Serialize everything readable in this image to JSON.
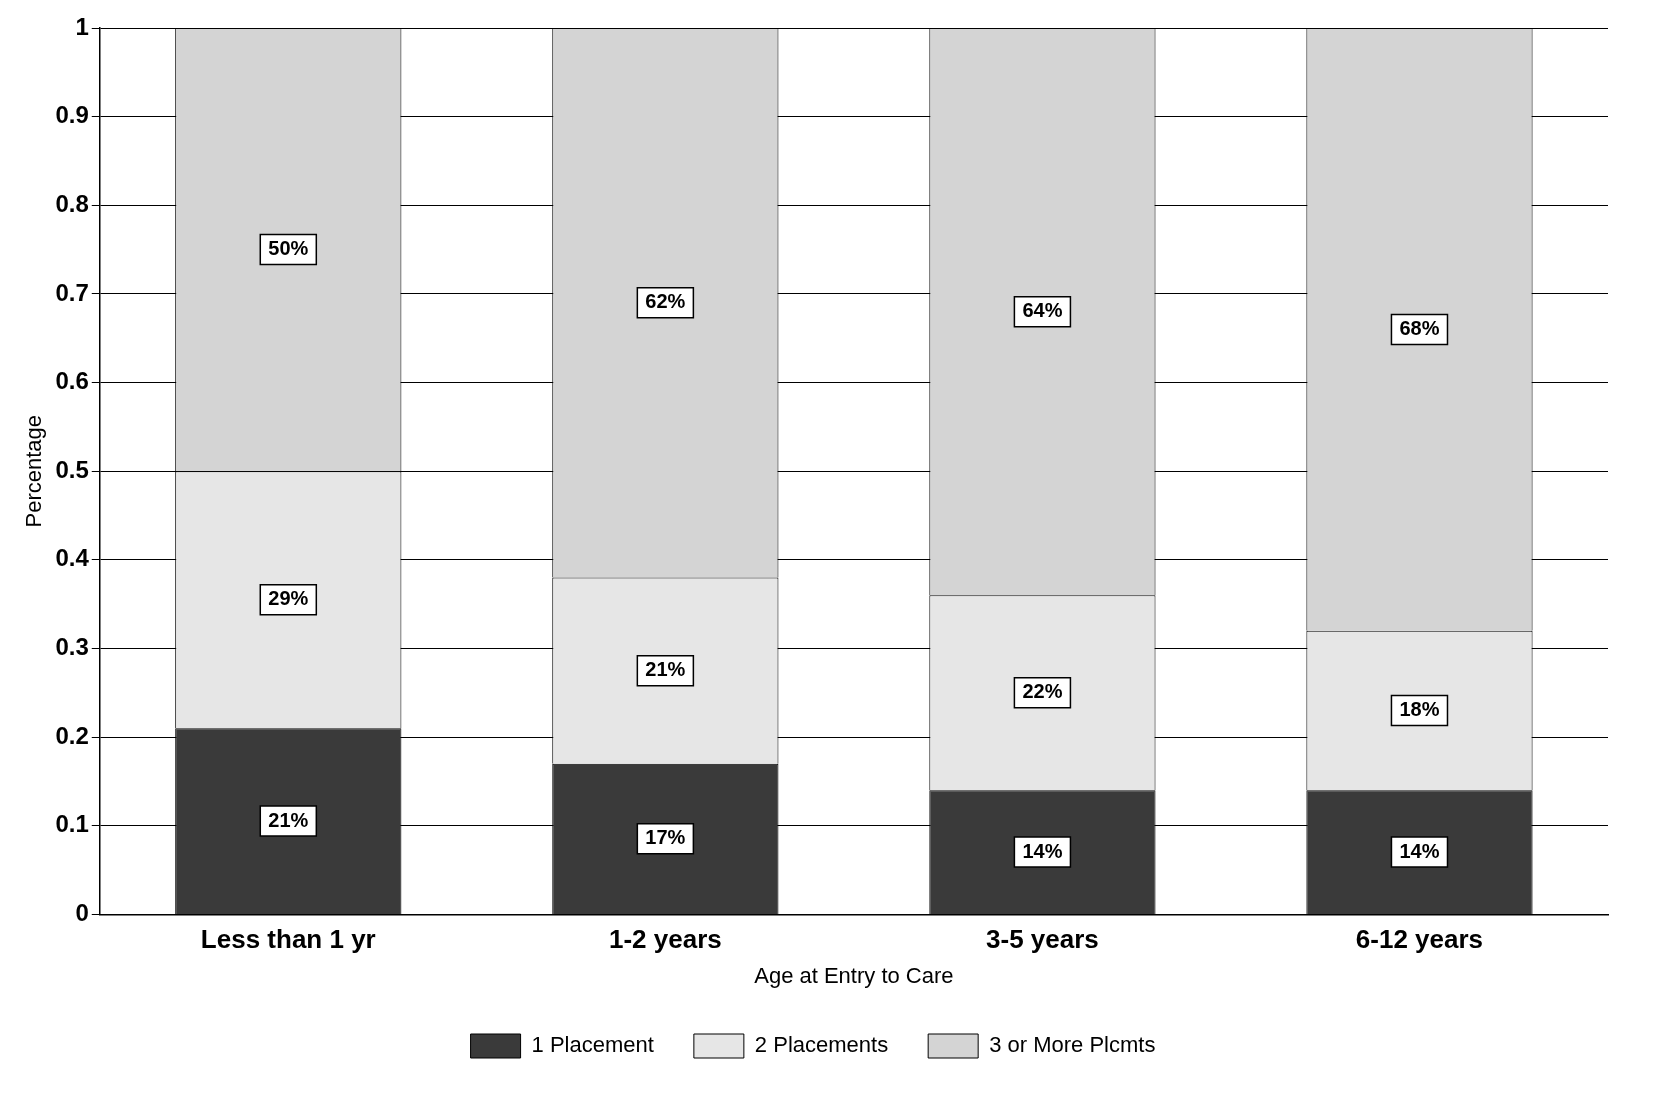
{
  "chart_data": {
    "type": "bar",
    "stacked": true,
    "xlabel": "Age at Entry to Care",
    "ylabel": "Percentage",
    "categories": [
      "Less than 1 yr",
      "1-2 years",
      "3-5 years",
      "6-12 years"
    ],
    "series": [
      {
        "name": "1 Placement",
        "color": "#3a3a3a",
        "values": [
          0.21,
          0.17,
          0.14,
          0.14
        ],
        "value_labels": [
          "21%",
          "17%",
          "14%",
          "14%"
        ]
      },
      {
        "name": "2 Placements",
        "color": "#e6e6e6",
        "values": [
          0.29,
          0.21,
          0.22,
          0.18
        ],
        "value_labels": [
          "29%",
          "21%",
          "22%",
          "18%"
        ]
      },
      {
        "name": "3 or More Plcmts",
        "color": "#d4d4d4",
        "values": [
          0.5,
          0.62,
          0.64,
          0.68
        ],
        "value_labels": [
          "50%",
          "62%",
          "64%",
          "68%"
        ]
      }
    ],
    "ylim": [
      0,
      1
    ],
    "yticks": [
      0,
      0.1,
      0.2,
      0.3,
      0.4,
      0.5,
      0.6,
      0.7,
      0.8,
      0.9,
      1
    ],
    "grid": "y",
    "legend": "bottom"
  }
}
